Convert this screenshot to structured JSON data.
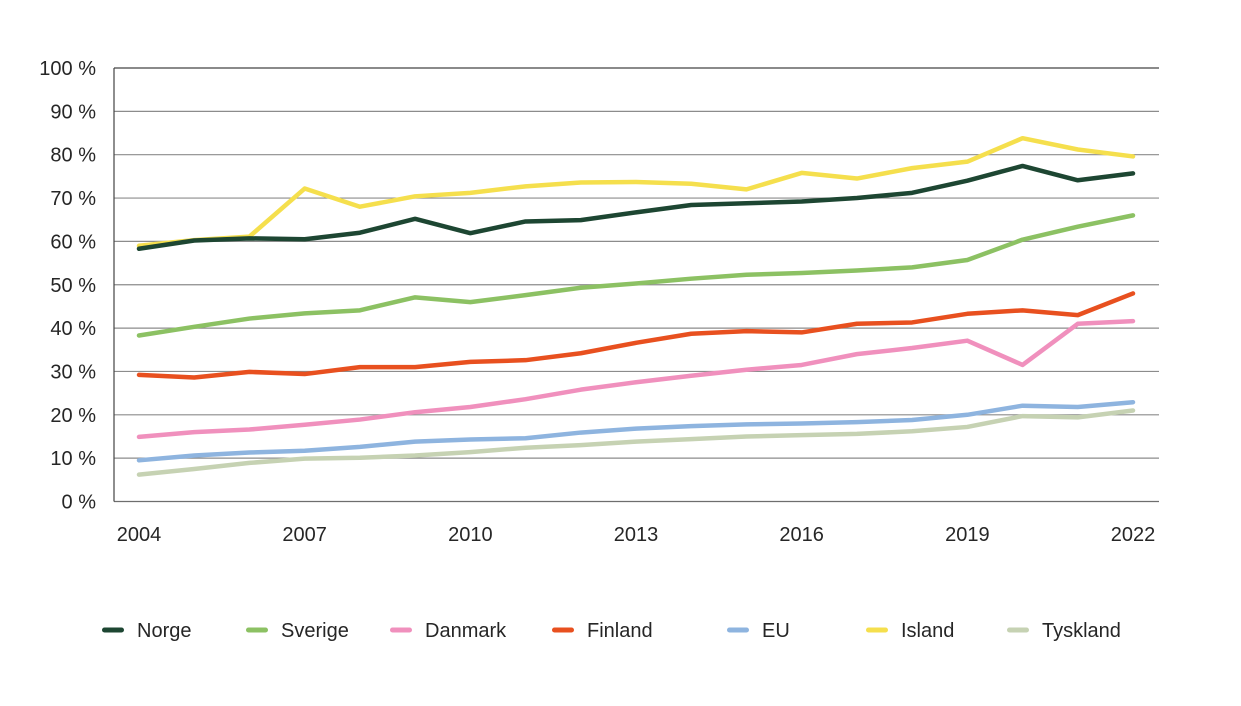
{
  "chart_data": {
    "type": "line",
    "title": "",
    "xlabel": "",
    "ylabel": "",
    "x": [
      2004,
      2005,
      2006,
      2007,
      2008,
      2009,
      2010,
      2011,
      2012,
      2013,
      2014,
      2015,
      2016,
      2017,
      2018,
      2019,
      2020,
      2021,
      2022
    ],
    "x_tick_labels": [
      "2004",
      "2007",
      "2010",
      "2013",
      "2016",
      "2019",
      "2022"
    ],
    "y_tick_labels": [
      "0 %",
      "10 %",
      "20 %",
      "30 %",
      "40 %",
      "50 %",
      "60 %",
      "70 %",
      "80 %",
      "90 %",
      "100 %"
    ],
    "ylim": [
      0,
      100
    ],
    "grid": "horizontal",
    "legend_position": "bottom",
    "series": [
      {
        "name": "Norge",
        "color": "#1d4632",
        "values": [
          58.3,
          60.2,
          60.7,
          60.5,
          62.0,
          65.2,
          61.9,
          64.6,
          64.9,
          66.7,
          68.4,
          68.8,
          69.2,
          70.0,
          71.2,
          74.0,
          77.4,
          74.1,
          75.7
        ]
      },
      {
        "name": "Sverige",
        "color": "#8cc163",
        "values": [
          38.3,
          40.3,
          42.2,
          43.4,
          44.1,
          47.1,
          46.0,
          47.6,
          49.3,
          50.3,
          51.4,
          52.3,
          52.7,
          53.3,
          54.0,
          55.7,
          60.4,
          63.4,
          66.0
        ]
      },
      {
        "name": "Danmark",
        "color": "#f090bd",
        "values": [
          14.9,
          16.0,
          16.6,
          17.7,
          18.9,
          20.6,
          21.8,
          23.6,
          25.8,
          27.5,
          29.0,
          30.4,
          31.5,
          34.0,
          35.4,
          37.1,
          31.5,
          41.0,
          41.6
        ]
      },
      {
        "name": "Finland",
        "color": "#e8501f",
        "values": [
          29.2,
          28.6,
          29.9,
          29.4,
          31.0,
          31.0,
          32.2,
          32.6,
          34.2,
          36.6,
          38.7,
          39.3,
          39.0,
          41.0,
          41.3,
          43.3,
          44.1,
          43.0,
          48.0
        ]
      },
      {
        "name": "EU",
        "color": "#8eb4df",
        "values": [
          9.5,
          10.6,
          11.3,
          11.7,
          12.6,
          13.8,
          14.3,
          14.6,
          15.9,
          16.8,
          17.4,
          17.8,
          18.0,
          18.3,
          18.8,
          20.0,
          22.1,
          21.8,
          22.9
        ]
      },
      {
        "name": "Island",
        "color": "#f5df4d",
        "values": [
          59.0,
          60.3,
          61.1,
          72.2,
          68.0,
          70.4,
          71.2,
          72.7,
          73.6,
          73.7,
          73.3,
          72.0,
          75.8,
          74.5,
          76.9,
          78.4,
          83.8,
          81.2,
          79.6
        ]
      },
      {
        "name": "Tyskland",
        "color": "#c6d2b3",
        "values": [
          6.2,
          7.5,
          8.9,
          9.9,
          10.1,
          10.6,
          11.4,
          12.4,
          13.0,
          13.8,
          14.4,
          15.0,
          15.3,
          15.6,
          16.2,
          17.2,
          19.7,
          19.4,
          21.0
        ]
      }
    ]
  }
}
